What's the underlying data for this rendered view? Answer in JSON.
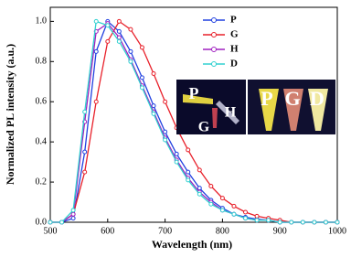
{
  "chart_data": {
    "type": "line",
    "x_label": "Wavelength (nm)",
    "y_label": "Normalized PL intensity (a.u.)",
    "x": [
      500,
      520,
      540,
      560,
      580,
      600,
      620,
      640,
      660,
      680,
      700,
      720,
      740,
      760,
      780,
      800,
      820,
      840,
      860,
      880,
      900,
      920,
      940,
      960,
      980,
      1000
    ],
    "series": [
      {
        "name": "P",
        "color": "#2040e0",
        "values": [
          0,
          0,
          0.02,
          0.35,
          0.85,
          1.0,
          0.95,
          0.85,
          0.72,
          0.58,
          0.45,
          0.34,
          0.25,
          0.17,
          0.11,
          0.07,
          0.04,
          0.025,
          0.015,
          0.01,
          0,
          0,
          0,
          0,
          0,
          0
        ]
      },
      {
        "name": "G",
        "color": "#e8202a",
        "values": [
          0,
          0,
          0.04,
          0.25,
          0.6,
          0.9,
          1.0,
          0.96,
          0.87,
          0.74,
          0.6,
          0.47,
          0.36,
          0.26,
          0.18,
          0.12,
          0.08,
          0.05,
          0.03,
          0.02,
          0.01,
          0,
          0,
          0,
          0,
          0
        ]
      },
      {
        "name": "H",
        "color": "#a020c0",
        "values": [
          0,
          0,
          0.04,
          0.5,
          0.95,
          0.99,
          0.92,
          0.81,
          0.68,
          0.55,
          0.42,
          0.31,
          0.22,
          0.15,
          0.1,
          0.06,
          0.04,
          0.02,
          0.01,
          0.01,
          0,
          0,
          0,
          0,
          0,
          0
        ]
      },
      {
        "name": "D",
        "color": "#30d0d0",
        "values": [
          0,
          0,
          0.06,
          0.55,
          1.0,
          0.98,
          0.9,
          0.8,
          0.67,
          0.54,
          0.41,
          0.3,
          0.21,
          0.14,
          0.09,
          0.06,
          0.04,
          0.02,
          0.01,
          0.01,
          0,
          0,
          0,
          0,
          0,
          0
        ]
      }
    ],
    "xlim": [
      500,
      1000
    ],
    "xticks": [
      500,
      600,
      700,
      800,
      900,
      1000
    ],
    "ylim": [
      0,
      1.07
    ],
    "yticks": [
      {
        "value": 0,
        "label": "0.0"
      },
      0.2,
      0.4,
      0.6,
      0.8,
      {
        "value": 1,
        "label": "1.0"
      }
    ],
    "legend": "upper right",
    "annotations": [
      "P",
      "H",
      "G",
      "P",
      "G",
      "D"
    ]
  }
}
